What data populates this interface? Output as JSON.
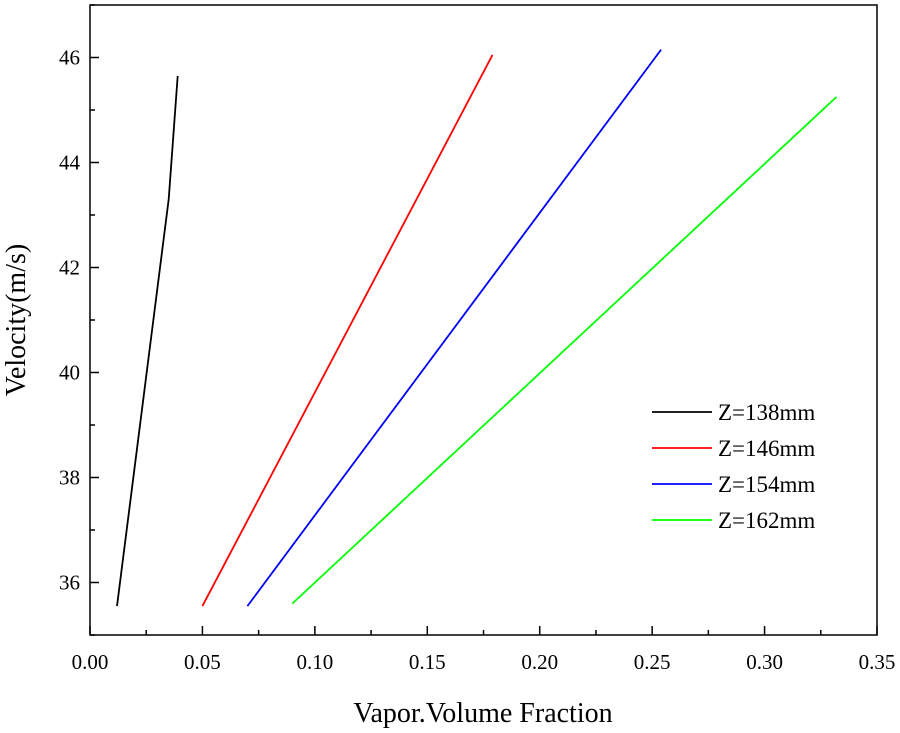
{
  "chart_data": {
    "type": "line",
    "title": "",
    "xlabel": "Vapor.Volume Fraction",
    "ylabel": "Velocity(m/s)",
    "xlim": [
      0.0,
      0.35
    ],
    "ylim": [
      35.0,
      47.0
    ],
    "x_ticks": [
      "0.00",
      "0.05",
      "0.10",
      "0.15",
      "0.20",
      "0.25",
      "0.30",
      "0.35"
    ],
    "y_ticks": [
      "36",
      "38",
      "40",
      "42",
      "44",
      "46"
    ],
    "legend_position": "bottom-right",
    "series": [
      {
        "name": "Z=138mm",
        "color": "#000000",
        "x": [
          0.012,
          0.035,
          0.039
        ],
        "y": [
          35.55,
          43.3,
          45.65
        ]
      },
      {
        "name": "Z=146mm",
        "color": "#ff0000",
        "x": [
          0.05,
          0.179
        ],
        "y": [
          35.55,
          46.05
        ]
      },
      {
        "name": "Z=154mm",
        "color": "#0000ff",
        "x": [
          0.07,
          0.254
        ],
        "y": [
          35.55,
          46.15
        ]
      },
      {
        "name": "Z=162mm",
        "color": "#00ff00",
        "x": [
          0.09,
          0.332
        ],
        "y": [
          35.6,
          45.25
        ]
      }
    ]
  }
}
